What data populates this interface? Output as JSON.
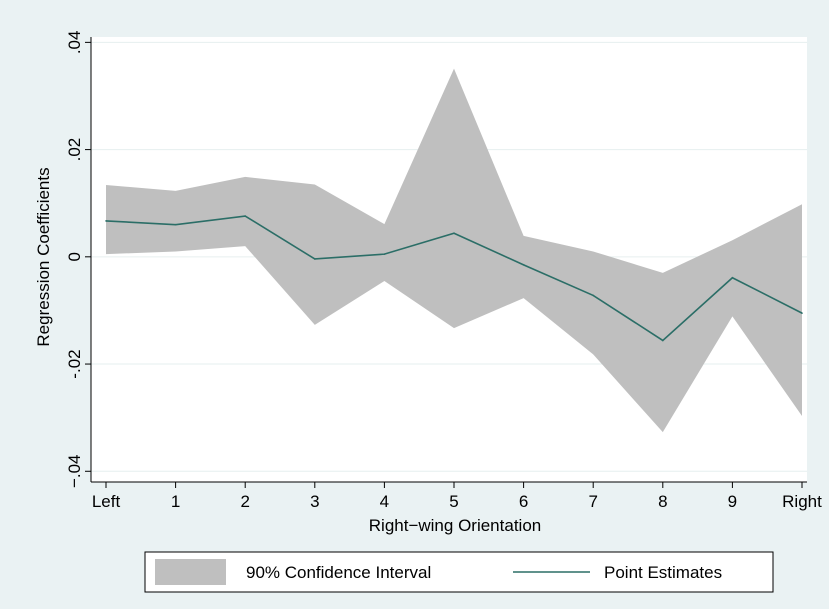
{
  "chart_data": {
    "type": "area",
    "title": "",
    "xlabel": "Right−wing Orientation",
    "ylabel": "Regression Coefficients",
    "x_categories": [
      "Left",
      "1",
      "2",
      "3",
      "4",
      "5",
      "6",
      "7",
      "8",
      "9",
      "Right"
    ],
    "yticks": [
      -0.04,
      -0.02,
      0,
      0.02,
      0.04
    ],
    "ytick_labels": [
      "−.04",
      "-.02",
      "0",
      ".02",
      ".04"
    ],
    "ylim": [
      -0.042,
      0.041
    ],
    "grid": true,
    "legend_position": "bottom",
    "series": [
      {
        "name": "90% Confidence Interval",
        "kind": "band",
        "color": "#bfbfbf",
        "lower": [
          0.0005,
          0.001,
          0.002,
          -0.0127,
          -0.0045,
          -0.0133,
          -0.0077,
          -0.0182,
          -0.0327,
          -0.0111,
          -0.0297
        ],
        "upper": [
          0.0134,
          0.0123,
          0.0149,
          0.0135,
          0.0061,
          0.0351,
          0.0039,
          0.001,
          -0.003,
          0.0031,
          0.0098
        ]
      },
      {
        "name": "Point Estimates",
        "kind": "line",
        "color": "#2b6e67",
        "values": [
          0.0067,
          0.006,
          0.0076,
          -0.0004,
          0.0005,
          0.0044,
          -0.0015,
          -0.0072,
          -0.0156,
          -0.0039,
          -0.0105
        ]
      }
    ]
  }
}
